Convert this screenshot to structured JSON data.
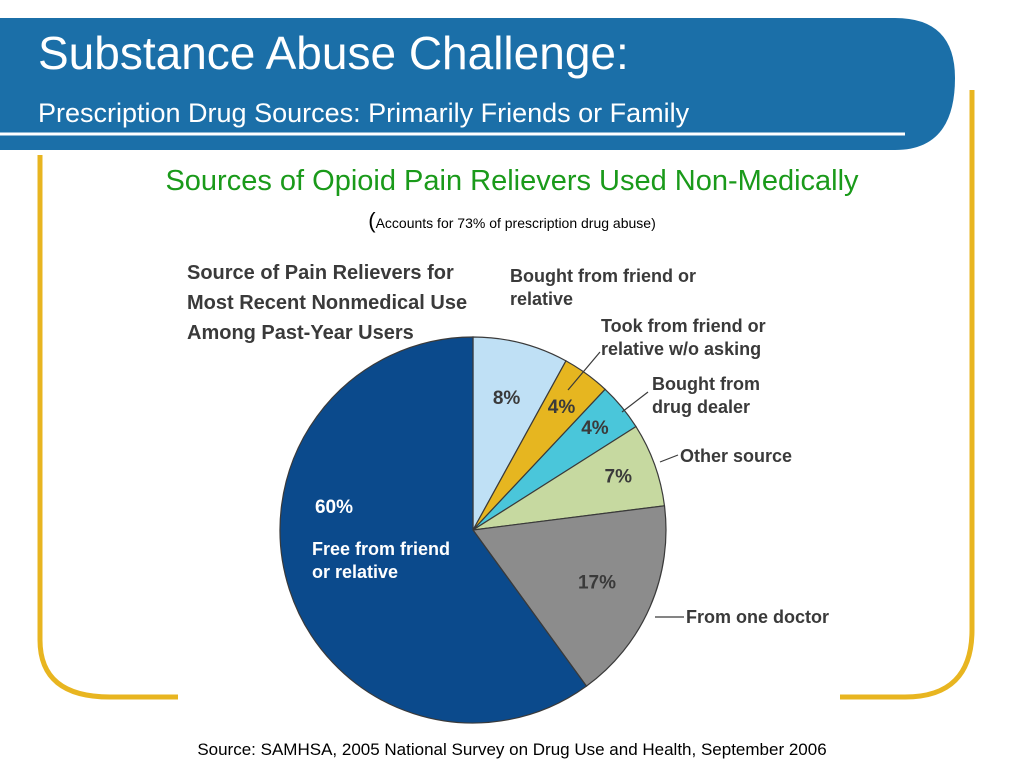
{
  "slide": {
    "title": "Substance Abuse Challenge:",
    "subtitle": "Prescription Drug Sources: Primarily Friends or Family",
    "source": "Source: SAMHSA, 2005 National Survey on Drug Use and Health, September 2006"
  },
  "chart_data": {
    "type": "pie",
    "title": "Sources of Opioid Pain Relievers Used Non-Medically",
    "note_open": "(",
    "note": "Accounts for 73% of prescription drug abuse)",
    "heading": "Source of Pain Relievers for Most Recent Nonmedical Use Among Past-Year Users",
    "slices": [
      {
        "label": "Bought from friend or relative",
        "value": 8,
        "value_label": "8%",
        "color": "#bfe0f5"
      },
      {
        "label": "Took from friend or relative w/o asking",
        "value": 4,
        "value_label": "4%",
        "color": "#e6b620"
      },
      {
        "label": "Bought from drug dealer",
        "value": 4,
        "value_label": "4%",
        "color": "#4ac6da"
      },
      {
        "label": "Other source",
        "value": 7,
        "value_label": "7%",
        "color": "#c6d9a0"
      },
      {
        "label": "From one doctor",
        "value": 17,
        "value_label": "17%",
        "color": "#8c8c8c"
      },
      {
        "label": "Free from friend or relative",
        "value": 60,
        "value_label": "60%",
        "color": "#0b4a8c"
      }
    ]
  },
  "colors": {
    "header_band": "#1b6fa8",
    "frame": "#e8b520",
    "chart_title": "#1a9a1a"
  }
}
